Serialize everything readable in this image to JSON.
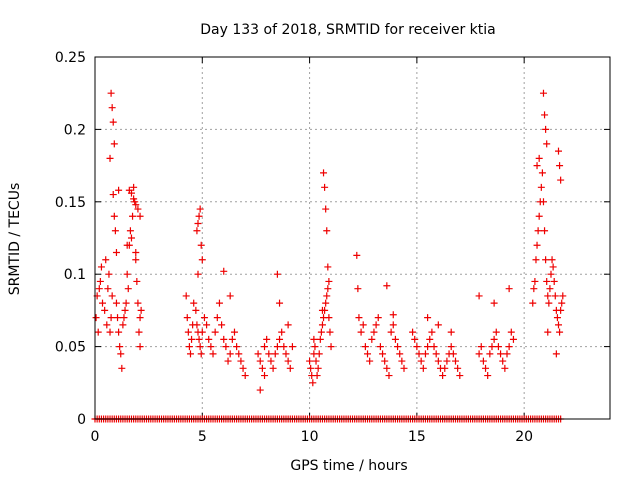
{
  "chart_data": {
    "type": "scatter",
    "title": "Day 133 of 2018, SRMTID for receiver ktia",
    "xlabel": "GPS time / hours",
    "ylabel": "SRMTID / TECUs",
    "xlim": [
      0,
      24
    ],
    "ylim": [
      0,
      0.25
    ],
    "xticks": [
      0,
      5,
      10,
      15,
      20
    ],
    "yticks": [
      0,
      0.05,
      0.1,
      0.15,
      0.2,
      0.25
    ],
    "xtick_labels": [
      "0",
      "5",
      "10",
      "15",
      "20"
    ],
    "ytick_labels": [
      "0",
      "0.05",
      "0.1",
      "0.15",
      "0.2",
      "0.25"
    ],
    "grid": true,
    "marker": "+",
    "color": "#ee0000",
    "series": [
      {
        "name": "SRMTID",
        "x": [
          0.05,
          0.1,
          0.15,
          0.2,
          0.25,
          0.3,
          0.35,
          0.45,
          0.5,
          0.55,
          0.6,
          0.65,
          0.7,
          0.75,
          0.8,
          0.85,
          0.9,
          0.95,
          1.0,
          1.0,
          1.05,
          1.1,
          1.15,
          1.2,
          1.25,
          1.3,
          1.35,
          1.4,
          1.45,
          1.5,
          1.55,
          1.6,
          1.65,
          1.7,
          1.75,
          1.8,
          1.85,
          1.9,
          1.95,
          2.0,
          2.05,
          2.1,
          2.15,
          0.75,
          0.8,
          0.85,
          0.9,
          1.6,
          1.7,
          1.8,
          1.9,
          2.0,
          2.1,
          0.7,
          1.1,
          1.5,
          1.9,
          2.1,
          4.25,
          4.3,
          4.35,
          4.4,
          4.45,
          4.5,
          4.55,
          4.6,
          4.7,
          4.75,
          4.8,
          4.85,
          4.9,
          4.95,
          5.0,
          5.1,
          5.2,
          5.3,
          5.4,
          5.5,
          5.6,
          5.7,
          5.8,
          5.9,
          6.0,
          6.1,
          6.2,
          6.3,
          6.4,
          6.5,
          6.6,
          6.7,
          6.8,
          6.9,
          7.0,
          4.75,
          4.8,
          4.85,
          4.9,
          4.95,
          5.0,
          4.8,
          6.0,
          6.3,
          7.6,
          7.7,
          7.8,
          7.9,
          8.0,
          8.1,
          8.2,
          8.3,
          8.4,
          8.5,
          8.6,
          8.7,
          8.8,
          8.9,
          9.0,
          9.1,
          9.2,
          7.7,
          7.9,
          8.5,
          8.6,
          9.0,
          10.0,
          10.05,
          10.1,
          10.15,
          10.2,
          10.25,
          10.3,
          10.35,
          10.4,
          10.45,
          10.5,
          10.55,
          10.6,
          10.65,
          10.7,
          10.75,
          10.8,
          10.85,
          10.9,
          10.95,
          11.0,
          10.65,
          10.7,
          10.75,
          10.8,
          10.85,
          10.9,
          10.6,
          10.2,
          12.2,
          12.3,
          12.4,
          12.5,
          12.6,
          12.7,
          12.8,
          12.9,
          13.0,
          13.1,
          13.2,
          13.3,
          13.4,
          13.5,
          13.6,
          13.7,
          13.8,
          13.9,
          14.0,
          14.1,
          14.2,
          14.3,
          14.4,
          12.25,
          13.6,
          13.9,
          14.8,
          14.9,
          15.0,
          15.1,
          15.2,
          15.3,
          15.4,
          15.5,
          15.6,
          15.7,
          15.8,
          15.9,
          16.0,
          16.1,
          16.2,
          16.3,
          16.4,
          16.5,
          16.6,
          16.7,
          16.8,
          16.9,
          17.0,
          15.5,
          16.0,
          16.6,
          17.9,
          18.0,
          18.1,
          18.2,
          18.3,
          18.4,
          18.5,
          18.6,
          18.7,
          18.8,
          18.9,
          19.0,
          19.1,
          19.2,
          19.3,
          19.4,
          19.5,
          17.9,
          18.6,
          19.3,
          20.4,
          20.45,
          20.5,
          20.55,
          20.6,
          20.65,
          20.7,
          20.75,
          20.8,
          20.85,
          20.9,
          20.95,
          21.0,
          21.05,
          21.1,
          21.15,
          21.2,
          21.25,
          21.3,
          21.35,
          21.4,
          21.45,
          21.5,
          21.55,
          21.6,
          21.65,
          21.7,
          21.75,
          21.8,
          20.9,
          20.95,
          21.0,
          21.05,
          21.6,
          21.65,
          21.7,
          20.6,
          20.7,
          21.1,
          21.5
        ],
        "y": [
          0.07,
          0.085,
          0.06,
          0.09,
          0.095,
          0.105,
          0.08,
          0.075,
          0.11,
          0.065,
          0.09,
          0.1,
          0.06,
          0.07,
          0.085,
          0.155,
          0.14,
          0.13,
          0.115,
          0.08,
          0.07,
          0.06,
          0.05,
          0.045,
          0.035,
          0.065,
          0.07,
          0.075,
          0.08,
          0.1,
          0.09,
          0.12,
          0.13,
          0.125,
          0.14,
          0.16,
          0.15,
          0.11,
          0.095,
          0.08,
          0.06,
          0.07,
          0.075,
          0.225,
          0.215,
          0.205,
          0.19,
          0.158,
          0.156,
          0.152,
          0.148,
          0.145,
          0.14,
          0.18,
          0.158,
          0.12,
          0.115,
          0.05,
          0.085,
          0.07,
          0.06,
          0.05,
          0.045,
          0.055,
          0.065,
          0.08,
          0.075,
          0.065,
          0.06,
          0.055,
          0.05,
          0.045,
          0.06,
          0.07,
          0.065,
          0.055,
          0.05,
          0.045,
          0.06,
          0.07,
          0.08,
          0.065,
          0.055,
          0.05,
          0.04,
          0.045,
          0.055,
          0.06,
          0.05,
          0.045,
          0.04,
          0.035,
          0.03,
          0.13,
          0.135,
          0.14,
          0.145,
          0.12,
          0.11,
          0.1,
          0.102,
          0.085,
          0.045,
          0.04,
          0.035,
          0.05,
          0.055,
          0.045,
          0.04,
          0.035,
          0.045,
          0.05,
          0.055,
          0.06,
          0.05,
          0.045,
          0.04,
          0.035,
          0.05,
          0.02,
          0.03,
          0.1,
          0.08,
          0.065,
          0.04,
          0.035,
          0.03,
          0.025,
          0.045,
          0.05,
          0.04,
          0.03,
          0.035,
          0.045,
          0.055,
          0.06,
          0.065,
          0.07,
          0.075,
          0.08,
          0.085,
          0.09,
          0.07,
          0.06,
          0.05,
          0.17,
          0.16,
          0.145,
          0.13,
          0.105,
          0.095,
          0.075,
          0.055,
          0.113,
          0.07,
          0.06,
          0.065,
          0.05,
          0.045,
          0.04,
          0.055,
          0.06,
          0.065,
          0.07,
          0.05,
          0.045,
          0.04,
          0.035,
          0.03,
          0.06,
          0.065,
          0.055,
          0.05,
          0.045,
          0.04,
          0.035,
          0.09,
          0.092,
          0.072,
          0.06,
          0.055,
          0.05,
          0.045,
          0.04,
          0.035,
          0.045,
          0.05,
          0.055,
          0.06,
          0.05,
          0.045,
          0.04,
          0.035,
          0.03,
          0.035,
          0.04,
          0.045,
          0.05,
          0.045,
          0.04,
          0.035,
          0.03,
          0.07,
          0.065,
          0.06,
          0.045,
          0.05,
          0.04,
          0.035,
          0.03,
          0.045,
          0.05,
          0.055,
          0.06,
          0.05,
          0.045,
          0.04,
          0.035,
          0.045,
          0.05,
          0.06,
          0.055,
          0.085,
          0.08,
          0.09,
          0.08,
          0.09,
          0.095,
          0.11,
          0.12,
          0.13,
          0.14,
          0.15,
          0.16,
          0.17,
          0.15,
          0.13,
          0.11,
          0.095,
          0.085,
          0.08,
          0.09,
          0.1,
          0.11,
          0.105,
          0.095,
          0.085,
          0.075,
          0.07,
          0.065,
          0.06,
          0.075,
          0.08,
          0.085,
          0.225,
          0.21,
          0.2,
          0.19,
          0.185,
          0.175,
          0.165,
          0.175,
          0.18,
          0.06,
          0.045
        ]
      }
    ],
    "zero_floor_x_range": [
      0,
      21.8
    ]
  }
}
